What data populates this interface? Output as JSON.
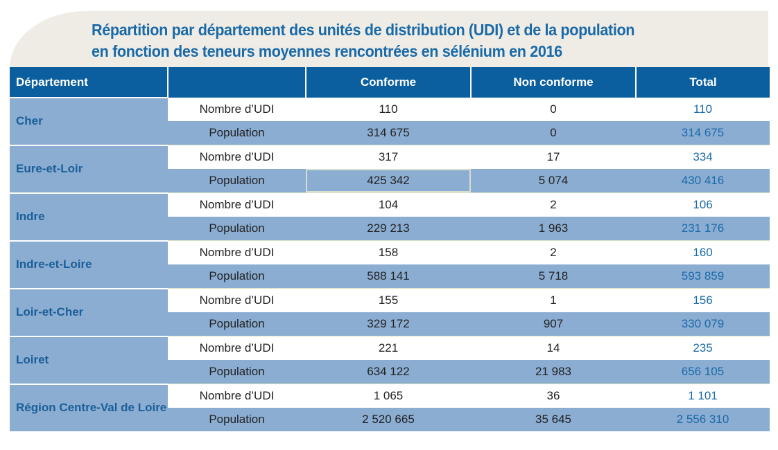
{
  "chart_data": {
    "type": "table",
    "title_lines": [
      "Répartition par département des unités de distribution (UDI) et de la population",
      "en fonction des teneurs moyennes rencontrées en sélénium en 2016"
    ],
    "columns": [
      "Département",
      "",
      "Conforme",
      "Non conforme",
      "Total"
    ],
    "row_labels": [
      "Nombre d’UDI",
      "Population"
    ],
    "rows": [
      {
        "department": "Cher",
        "udi": {
          "conforme": "110",
          "non_conforme": "0",
          "total": "110"
        },
        "population": {
          "conforme": "314 675",
          "non_conforme": "0",
          "total": "314 675"
        }
      },
      {
        "department": "Eure-et-Loir",
        "udi": {
          "conforme": "317",
          "non_conforme": "17",
          "total": "334"
        },
        "population": {
          "conforme": "425 342",
          "non_conforme": "5 074",
          "total": "430 416"
        }
      },
      {
        "department": "Indre",
        "udi": {
          "conforme": "104",
          "non_conforme": "2",
          "total": "106"
        },
        "population": {
          "conforme": "229 213",
          "non_conforme": "1 963",
          "total": "231 176"
        }
      },
      {
        "department": "Indre-et-Loire",
        "udi": {
          "conforme": "158",
          "non_conforme": "2",
          "total": "160"
        },
        "population": {
          "conforme": "588 141",
          "non_conforme": "5 718",
          "total": "593 859"
        }
      },
      {
        "department": "Loir-et-Cher",
        "udi": {
          "conforme": "155",
          "non_conforme": "1",
          "total": "156"
        },
        "population": {
          "conforme": "329 172",
          "non_conforme": "907",
          "total": "330 079"
        }
      },
      {
        "department": "Loiret",
        "udi": {
          "conforme": "221",
          "non_conforme": "14",
          "total": "235"
        },
        "population": {
          "conforme": "634 122",
          "non_conforme": "21 983",
          "total": "656 105"
        }
      },
      {
        "department": "Région Centre-Val de Loire",
        "udi": {
          "conforme": "1 065",
          "non_conforme": "36",
          "total": "1 101"
        },
        "population": {
          "conforme": "2 520 665",
          "non_conforme": "35 645",
          "total": "2 556 310"
        }
      }
    ],
    "colors": {
      "header_bg": "#0b5f9e",
      "row_band": "#8badd2",
      "title": "#1a6aa8",
      "total_text": "#1a6aa8"
    }
  }
}
